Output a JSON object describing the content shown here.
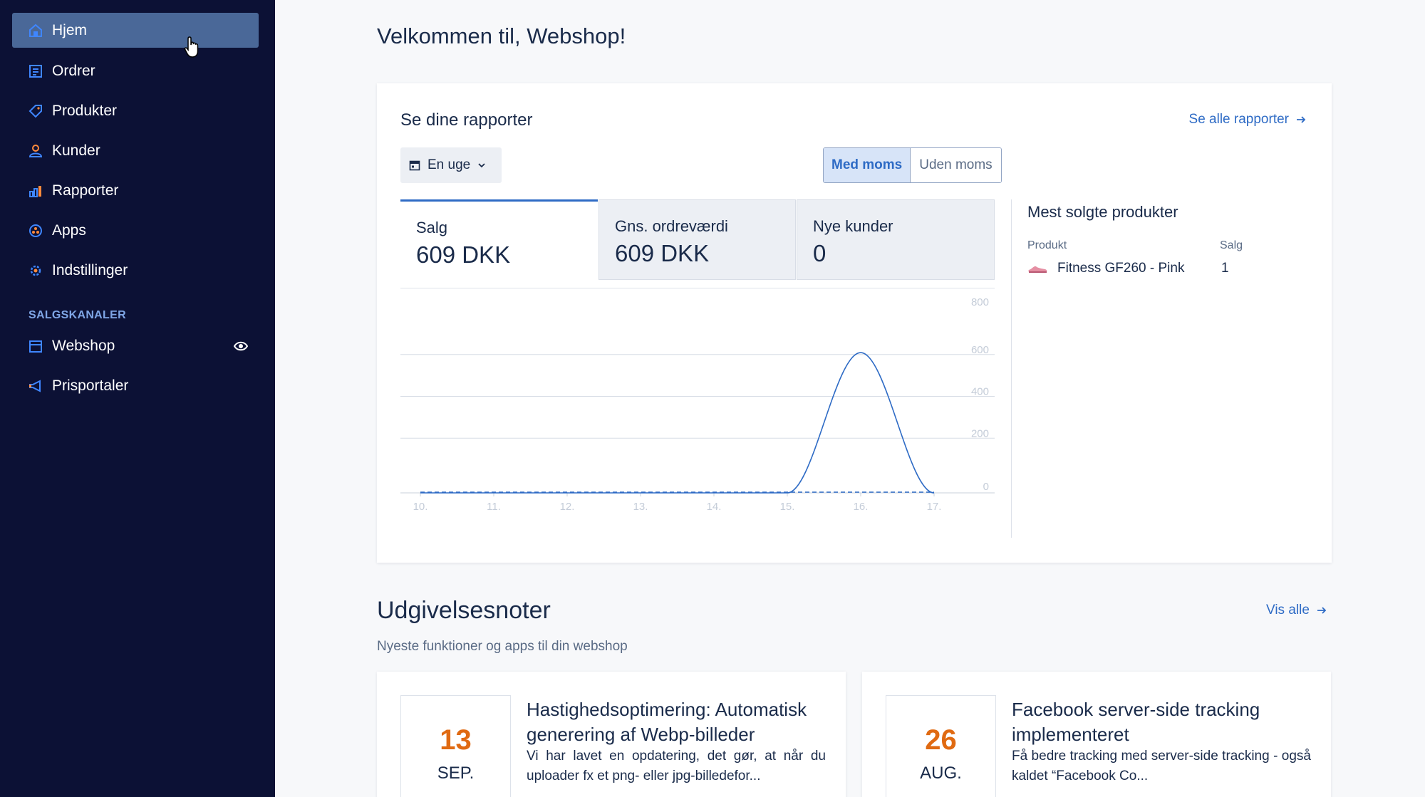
{
  "sidebar": {
    "items": [
      {
        "label": "Hjem",
        "icon": "home-icon",
        "active": true
      },
      {
        "label": "Ordrer",
        "icon": "orders-icon"
      },
      {
        "label": "Produkter",
        "icon": "tag-icon"
      },
      {
        "label": "Kunder",
        "icon": "user-icon"
      },
      {
        "label": "Rapporter",
        "icon": "bar-chart-icon"
      },
      {
        "label": "Apps",
        "icon": "apps-icon"
      },
      {
        "label": "Indstillinger",
        "icon": "gear-icon"
      }
    ],
    "section_label": "SALGSKANALER",
    "channels": [
      {
        "label": "Webshop",
        "icon": "store-icon",
        "extra_icon": "eye-icon"
      },
      {
        "label": "Prisportaler",
        "icon": "megaphone-icon"
      }
    ],
    "accent": "#7fa6e6",
    "background": "#0c1135"
  },
  "main": {
    "welcome": "Velkommen til, Webshop!",
    "reports": {
      "title": "Se dine rapporter",
      "see_all": "Se alle rapporter",
      "range": "En uge",
      "toggle": {
        "on": "Med moms",
        "off": "Uden moms"
      },
      "stats": [
        {
          "label": "Salg",
          "value": "609 DKK"
        },
        {
          "label": "Gns. ordreværdi",
          "value": "609 DKK"
        },
        {
          "label": "Nye kunder",
          "value": "0"
        }
      ],
      "best_selling": {
        "title": "Mest solgte produkter",
        "col_product": "Produkt",
        "col_sales": "Salg",
        "rows": [
          {
            "product": "Fitness GF260 - Pink",
            "sales": "1"
          }
        ]
      }
    },
    "release_notes": {
      "title": "Udgivelsesnoter",
      "subtitle": "Nyeste funktioner og apps til din webshop",
      "see_all": "Vis alle",
      "notes": [
        {
          "day": "13",
          "month": "SEP.",
          "title": "Hastighedsoptimering: Automatisk generering af Webp-billeder",
          "desc": "Vi har lavet en opdatering, det gør, at når du uploader fx et png- eller jpg-billedefor..."
        },
        {
          "day": "26",
          "month": "AUG.",
          "title": "Facebook server-side tracking implementeret",
          "desc": "Få bedre tracking med server-side tracking - også kaldet “Facebook Co..."
        }
      ]
    }
  },
  "chart_data": {
    "type": "line",
    "categories": [
      "10.",
      "11.",
      "12.",
      "13.",
      "14.",
      "15.",
      "16.",
      "17."
    ],
    "series": [
      {
        "values": [
          0,
          0,
          0,
          0,
          0,
          0,
          609,
          0
        ],
        "style": "solid",
        "color": "#2e6bc5"
      },
      {
        "values": [
          0,
          0,
          0,
          0,
          0,
          0,
          0,
          0
        ],
        "style": "dashed",
        "color": "#2e6bc5"
      }
    ],
    "y_ticks": [
      "0",
      "200",
      "400",
      "600",
      "800"
    ],
    "ylim": [
      0,
      800
    ],
    "grid": true
  }
}
